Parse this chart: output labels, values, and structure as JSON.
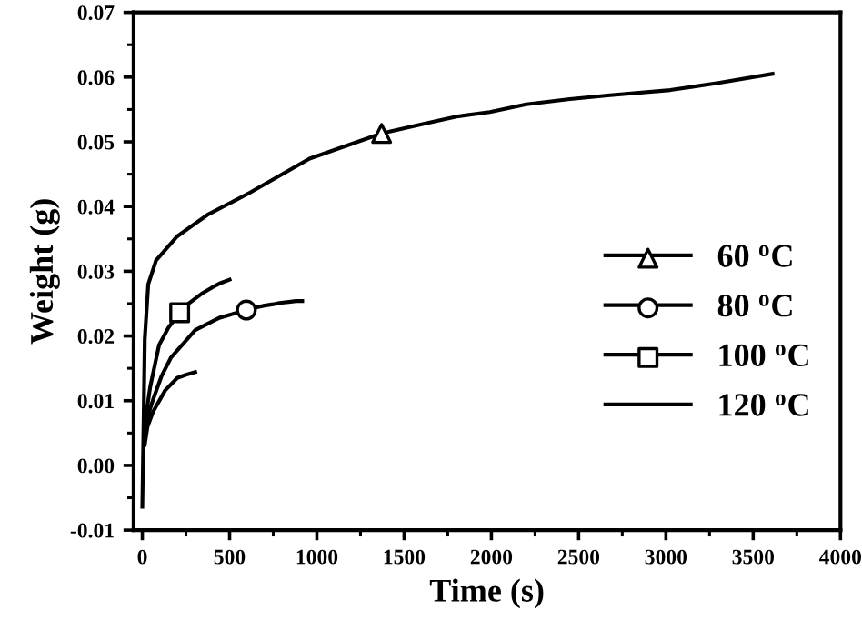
{
  "chart_data": {
    "type": "line",
    "xlabel": "Time (s)",
    "ylabel": "Weight (g)",
    "xlim": [
      -50,
      4000
    ],
    "ylim": [
      -0.01,
      0.07
    ],
    "xticks": [
      0,
      500,
      1000,
      1500,
      2000,
      2500,
      3000,
      3500,
      4000
    ],
    "yticks": [
      -0.01,
      {
        "value": 0,
        "label": "0.00"
      },
      0.01,
      0.02,
      0.03,
      0.04,
      0.05,
      0.06,
      0.07
    ],
    "grid": false,
    "legend": "right",
    "line_style": "solid",
    "series": [
      {
        "name": "60 $^{o}$C",
        "color": "#000000",
        "x": [
          0,
          7,
          14,
          34,
          79,
          200,
          372,
          613,
          958,
          1371,
          1600,
          1800,
          1991,
          2200,
          2450,
          2680,
          3025,
          3300,
          3611
        ],
        "values": [
          -0.0064,
          0.0064,
          0.0195,
          0.028,
          0.0317,
          0.0354,
          0.0387,
          0.0421,
          0.0474,
          0.0513,
          0.0527,
          0.0539,
          0.0546,
          0.0558,
          0.0566,
          0.0572,
          0.058,
          0.0591,
          0.0605
        ]
      },
      {
        "type": "scatter",
        "color": "#000000",
        "marker": "triangle",
        "x": [
          1371
        ],
        "values": [
          0.0513
        ]
      },
      {
        "name": "80 $^{o}$C",
        "color": "#000000",
        "x": [
          10,
          25,
          45,
          62,
          110,
          165,
          303,
          441,
          596,
          650,
          700,
          750,
          786,
          850,
          880,
          900,
          916
        ],
        "values": [
          0.0032,
          0.0065,
          0.0088,
          0.0102,
          0.0138,
          0.0167,
          0.0209,
          0.0228,
          0.024,
          0.0244,
          0.0247,
          0.0249,
          0.0251,
          0.0253,
          0.0254,
          0.0254,
          0.0254
        ]
      },
      {
        "type": "scatter",
        "color": "#000000",
        "marker": "circle",
        "x": [
          596
        ],
        "values": [
          0.024
        ]
      },
      {
        "name": "100 $^{o}$C",
        "color": "#000000",
        "x": [
          10,
          20,
          45,
          96,
          150,
          214,
          260,
          338,
          400,
          450,
          500
        ],
        "values": [
          0.0032,
          0.0075,
          0.0121,
          0.0186,
          0.0213,
          0.0236,
          0.0249,
          0.0265,
          0.0275,
          0.0282,
          0.0287
        ]
      },
      {
        "type": "scatter",
        "color": "#000000",
        "marker": "square",
        "x": [
          214
        ],
        "values": [
          0.0236
        ]
      },
      {
        "name": "120 $^{o}$C",
        "color": "#000000",
        "x": [
          14,
          30,
          62,
          131,
          200,
          250,
          303
        ],
        "values": [
          0.0032,
          0.006,
          0.0083,
          0.0116,
          0.0135,
          0.014,
          0.0144
        ]
      }
    ]
  }
}
